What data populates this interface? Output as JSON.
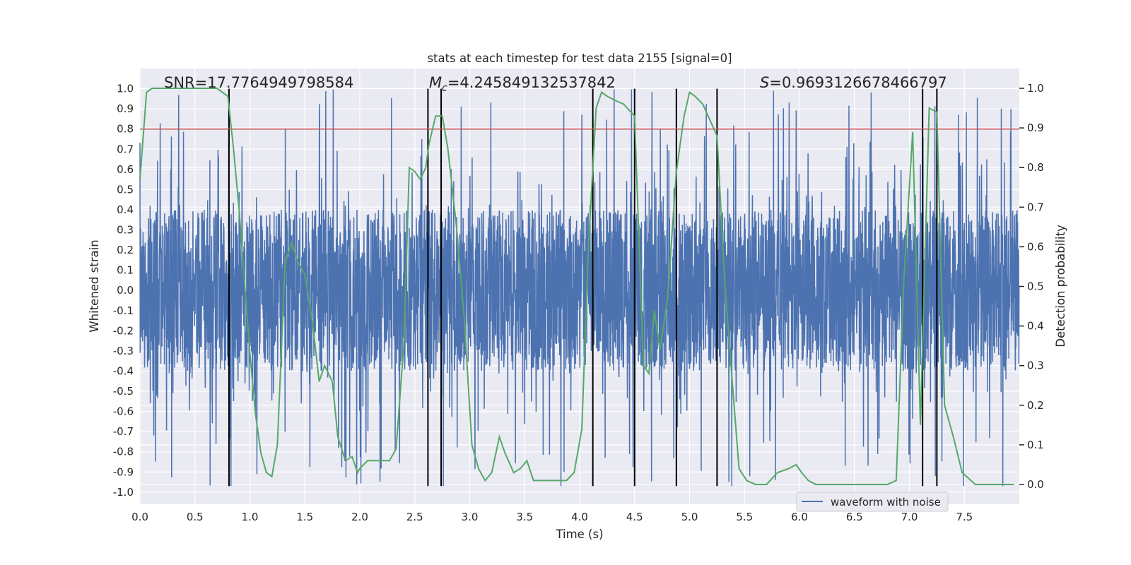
{
  "chart_data": {
    "type": "line",
    "title": "stats at each timestep for test data 2155 [signal=0]",
    "xlabel": "Time (s)",
    "ylabel_left": "Whitened strain",
    "ylabel_right": "Detection probability",
    "xlim": [
      0.0,
      8.0
    ],
    "ylim_left": [
      -1.06,
      1.1
    ],
    "ylim_right": [
      -0.05,
      1.05
    ],
    "x_ticks": [
      "0.0",
      "0.5",
      "1.0",
      "1.5",
      "2.0",
      "2.5",
      "3.0",
      "3.5",
      "4.0",
      "4.5",
      "5.0",
      "5.5",
      "6.0",
      "6.5",
      "7.0",
      "7.5"
    ],
    "y_ticks_left": [
      "1.0",
      "0.9",
      "0.8",
      "0.7",
      "0.6",
      "0.5",
      "0.4",
      "0.3",
      "0.2",
      "0.1",
      "0.0",
      "-0.1",
      "-0.2",
      "-0.3",
      "-0.4",
      "-0.5",
      "-0.6",
      "-0.7",
      "-0.8",
      "-0.9",
      "-1.0"
    ],
    "y_ticks_right": [
      "1.0",
      "0.9",
      "0.8",
      "0.7",
      "0.6",
      "0.5",
      "0.4",
      "0.3",
      "0.2",
      "0.1",
      "0.0"
    ],
    "annotations": {
      "snr": "SNR=17.7764949798584",
      "mc_symbol": "M",
      "mc_sub": "c",
      "mc_value": "=4.245849132537842",
      "s_symbol": "S",
      "s_value": "=0.9693126678466797"
    },
    "threshold": {
      "value": 0.8,
      "axis": "left",
      "color": "#c44e52"
    },
    "vertical_lines": [
      0.81,
      2.62,
      2.74,
      4.12,
      4.5,
      4.88,
      5.25,
      7.12,
      7.25
    ],
    "vertical_line_range": [
      -0.97,
      1.0
    ],
    "series": [
      {
        "name": "waveform with noise",
        "color": "#4c72b0",
        "axis": "left",
        "description": "whitened strain noise, dense band roughly -0.4 to 0.4 with spikes up to about 1.0 and down to about -0.97"
      },
      {
        "name": "detection probability",
        "color": "#55a868",
        "axis": "right",
        "x": [
          0.0,
          0.06,
          0.11,
          0.2,
          0.3,
          0.4,
          0.5,
          0.6,
          0.7,
          0.75,
          0.8,
          0.85,
          0.9,
          1.0,
          1.05,
          1.1,
          1.15,
          1.2,
          1.25,
          1.32,
          1.38,
          1.44,
          1.5,
          1.57,
          1.63,
          1.68,
          1.75,
          1.8,
          1.87,
          1.93,
          1.98,
          2.0,
          2.07,
          2.13,
          2.2,
          2.27,
          2.33,
          2.4,
          2.45,
          2.5,
          2.55,
          2.6,
          2.63,
          2.69,
          2.75,
          2.8,
          2.88,
          2.95,
          3.02,
          3.08,
          3.14,
          3.2,
          3.27,
          3.32,
          3.4,
          3.46,
          3.52,
          3.58,
          3.64,
          3.7,
          3.8,
          3.88,
          3.95,
          4.02,
          4.08,
          4.15,
          4.2,
          4.25,
          4.32,
          4.4,
          4.5,
          4.58,
          4.63,
          4.68,
          4.73,
          4.8,
          4.88,
          4.95,
          5.0,
          5.05,
          5.12,
          5.25,
          5.32,
          5.38,
          5.45,
          5.52,
          5.6,
          5.7,
          5.8,
          5.9,
          5.97,
          6.02,
          6.08,
          6.15,
          6.3,
          6.5,
          6.8,
          6.88,
          6.95,
          7.03,
          7.1,
          7.18,
          7.25,
          7.32,
          7.4,
          7.48,
          7.6,
          7.75,
          7.95
        ],
        "y": [
          0.77,
          0.99,
          1.0,
          1.0,
          1.0,
          1.0,
          1.0,
          1.0,
          1.0,
          0.99,
          0.98,
          0.85,
          0.7,
          0.33,
          0.18,
          0.08,
          0.03,
          0.02,
          0.1,
          0.56,
          0.61,
          0.56,
          0.53,
          0.41,
          0.26,
          0.3,
          0.26,
          0.12,
          0.06,
          0.07,
          0.03,
          0.04,
          0.06,
          0.06,
          0.06,
          0.06,
          0.09,
          0.35,
          0.8,
          0.79,
          0.77,
          0.8,
          0.86,
          0.93,
          0.93,
          0.85,
          0.65,
          0.42,
          0.1,
          0.04,
          0.01,
          0.03,
          0.12,
          0.08,
          0.03,
          0.04,
          0.06,
          0.01,
          0.01,
          0.01,
          0.01,
          0.01,
          0.03,
          0.14,
          0.6,
          0.95,
          0.99,
          0.98,
          0.97,
          0.96,
          0.93,
          0.3,
          0.28,
          0.44,
          0.34,
          0.47,
          0.79,
          0.93,
          0.99,
          0.98,
          0.96,
          0.88,
          0.51,
          0.29,
          0.04,
          0.01,
          0.0,
          0.0,
          0.03,
          0.04,
          0.05,
          0.03,
          0.01,
          0.0,
          0.0,
          0.0,
          0.0,
          0.01,
          0.52,
          0.89,
          0.15,
          0.95,
          0.94,
          0.2,
          0.12,
          0.03,
          0.0,
          0.0,
          0.0
        ]
      }
    ],
    "legend": {
      "label": "waveform with noise",
      "position": "lower-right"
    }
  }
}
